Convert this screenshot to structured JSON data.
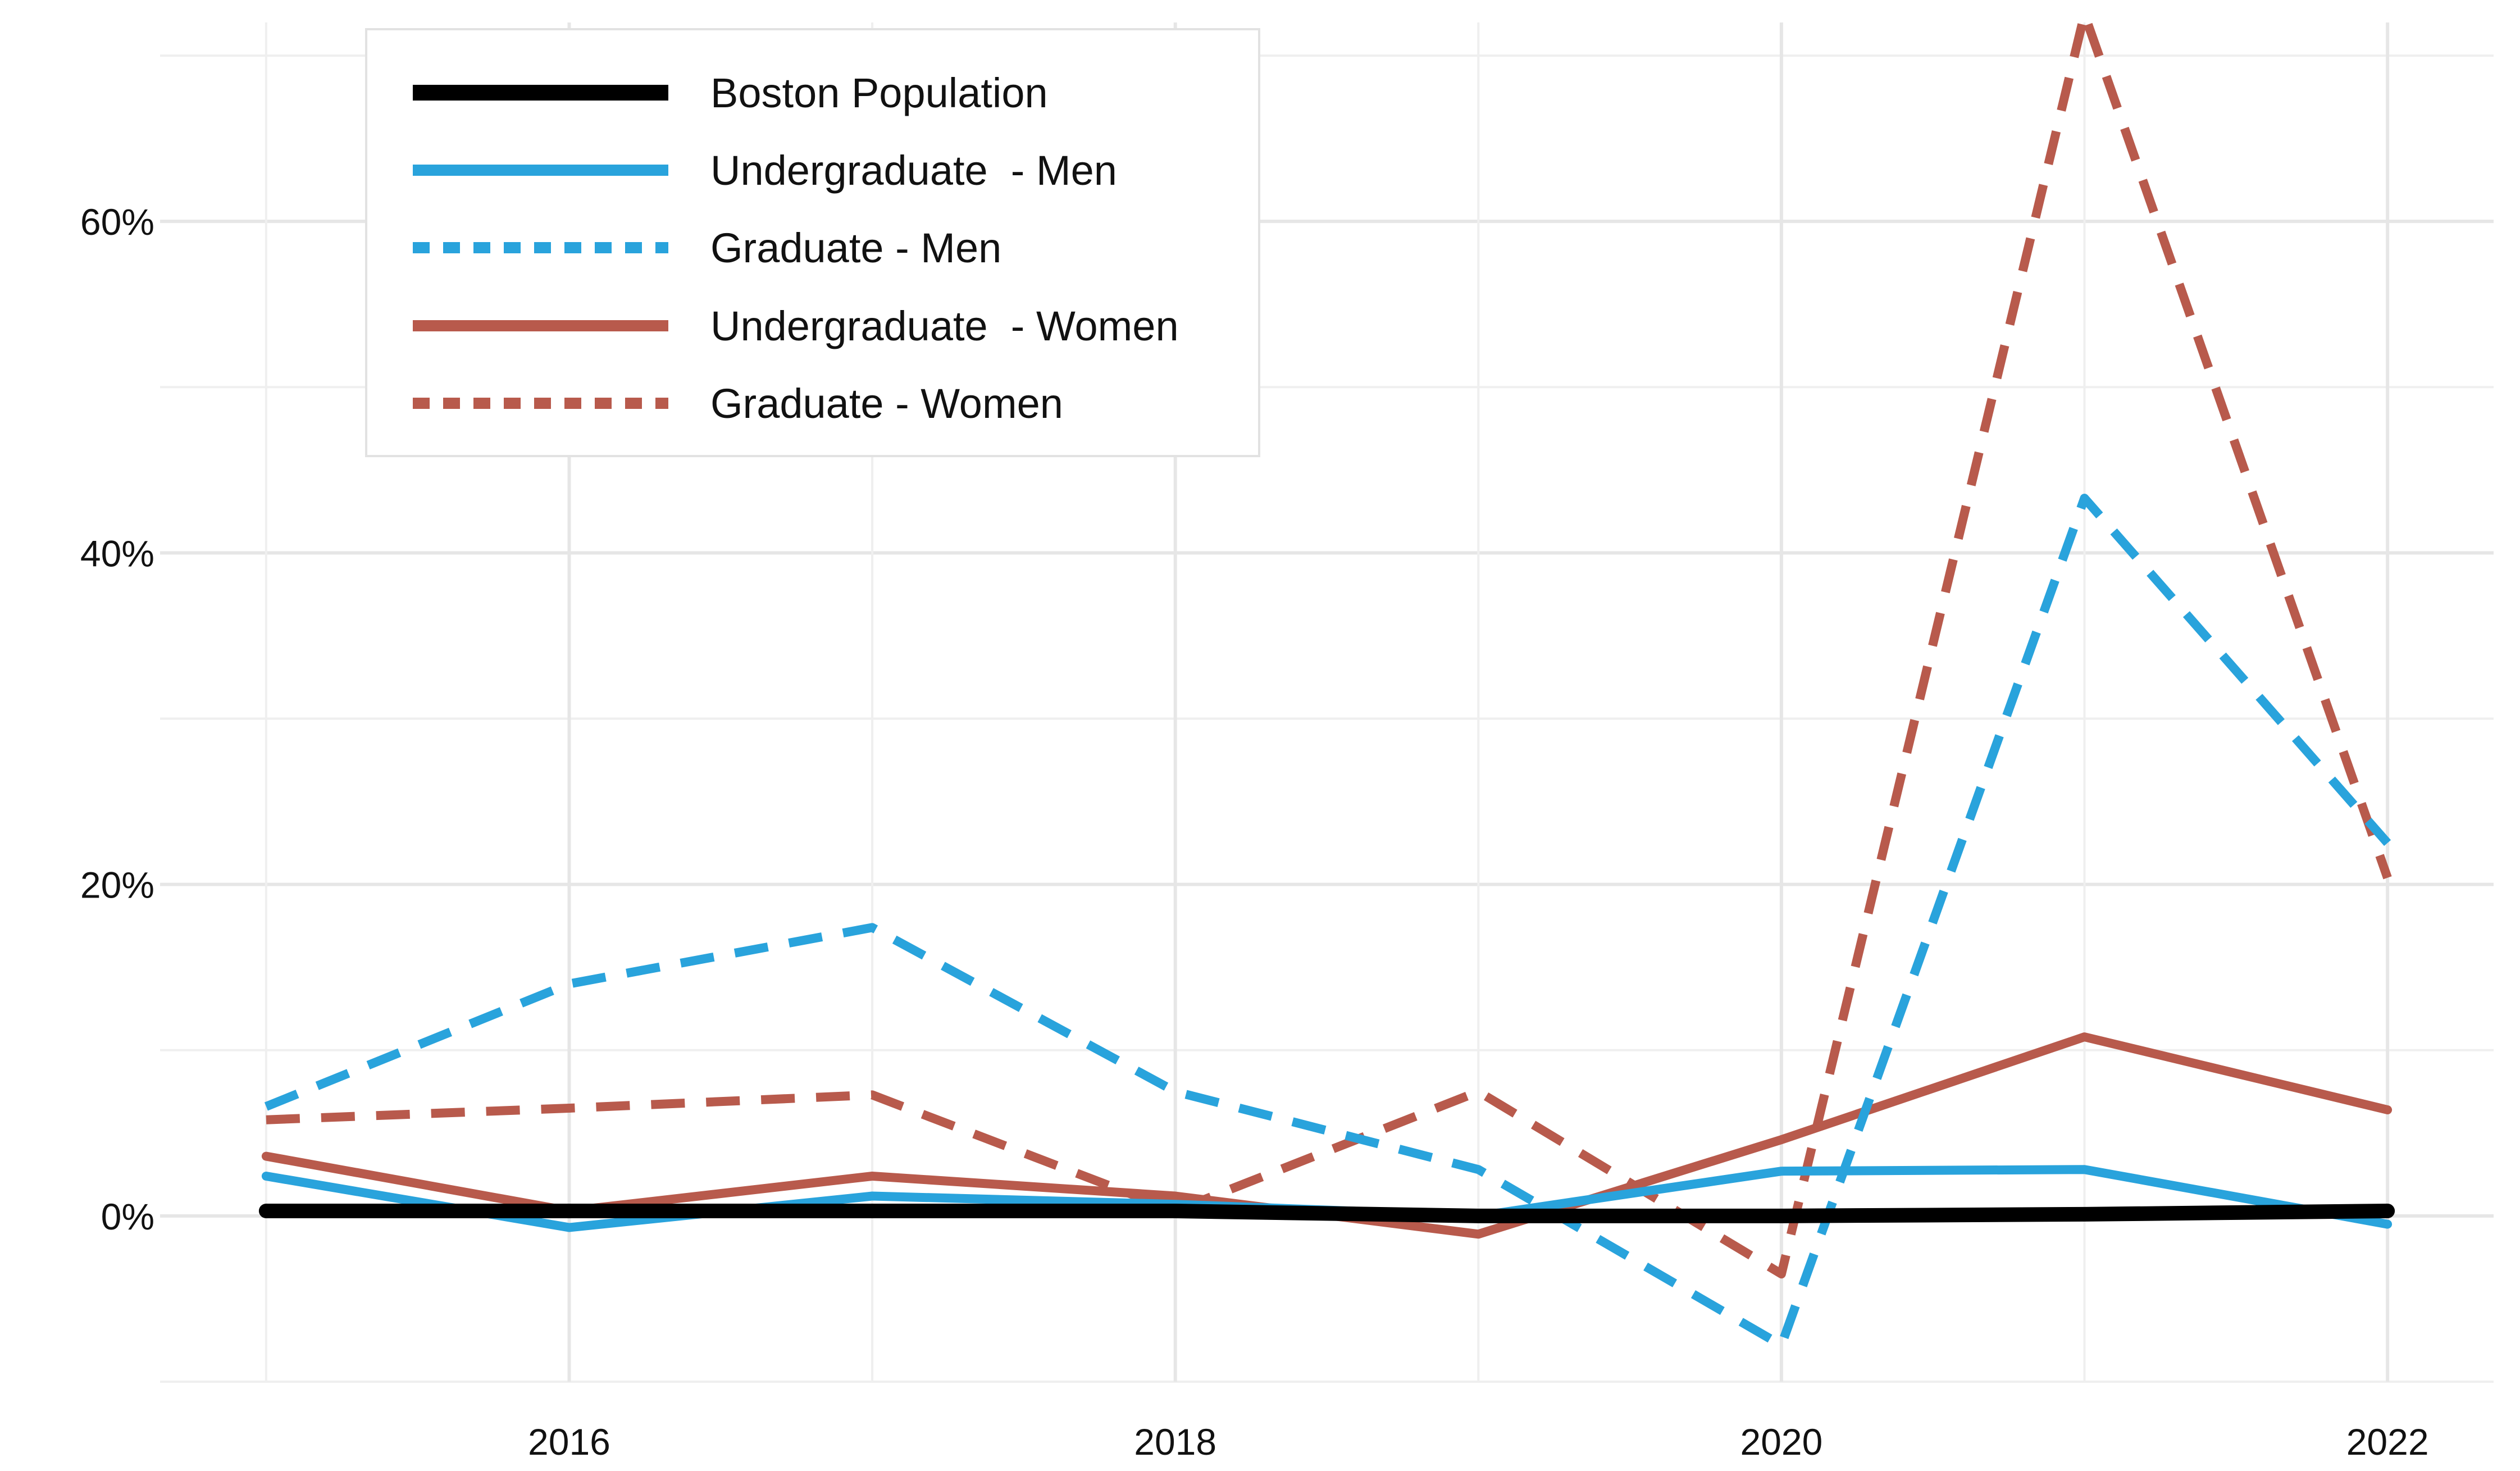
{
  "chart_data": {
    "type": "line",
    "title": "",
    "xlabel": "",
    "ylabel": "",
    "x": [
      2015,
      2016,
      2017,
      2018,
      2019,
      2020,
      2021,
      2022
    ],
    "xlim": [
      2014.65,
      2022.35
    ],
    "ylim": [
      -10,
      72
    ],
    "x_ticks": [
      2016,
      2018,
      2020,
      2022
    ],
    "x_tick_labels": [
      "2016",
      "2018",
      "2020",
      "2022"
    ],
    "y_ticks": [
      0,
      20,
      40,
      60
    ],
    "y_tick_labels": [
      "0%",
      "20%",
      "40%",
      "60%"
    ],
    "grid": true,
    "legend_position": "top-left",
    "series": [
      {
        "name": "Boston Population",
        "color": "#000000",
        "style": "solid",
        "values": [
          0.3,
          0.3,
          0.3,
          0.3,
          0.0,
          0.0,
          0.1,
          0.3
        ]
      },
      {
        "name": "Undergraduate  - Men",
        "color": "#29a3dc",
        "style": "solid",
        "values": [
          2.4,
          -0.7,
          1.2,
          0.7,
          0.0,
          2.7,
          2.8,
          -0.5
        ]
      },
      {
        "name": "Graduate - Men",
        "color": "#29a3dc",
        "style": "dashed",
        "values": [
          6.6,
          14.0,
          17.4,
          7.5,
          2.8,
          -7.8,
          43.3,
          22.5
        ]
      },
      {
        "name": "Undergraduate  - Women",
        "color": "#b85a4c",
        "style": "solid",
        "values": [
          3.6,
          0.3,
          2.4,
          1.2,
          -1.1,
          4.6,
          10.8,
          6.4
        ]
      },
      {
        "name": "Graduate - Women",
        "color": "#b85a4c",
        "style": "dashed",
        "values": [
          5.8,
          6.5,
          7.3,
          0.3,
          7.5,
          -3.5,
          72.5,
          20.4
        ]
      }
    ]
  }
}
